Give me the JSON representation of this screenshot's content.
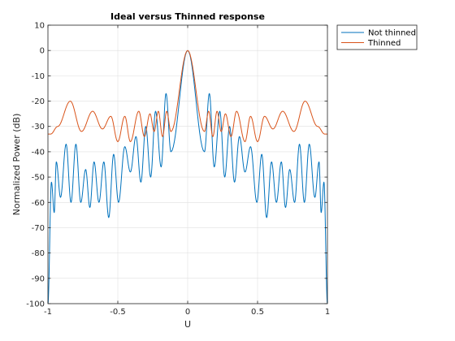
{
  "chart_data": {
    "type": "line",
    "title": "Ideal versus Thinned response",
    "xlabel": "U",
    "ylabel": "Normalized Power (dB)",
    "xlim": [
      -1,
      1
    ],
    "ylim": [
      -100,
      10
    ],
    "xticks": [
      -1,
      -0.5,
      0,
      0.5,
      1
    ],
    "xtick_labels": [
      "-1",
      "-0.5",
      "0",
      "0.5",
      "1"
    ],
    "yticks": [
      10,
      0,
      -10,
      -20,
      -30,
      -40,
      -50,
      -60,
      -70,
      -80,
      -90,
      -100
    ],
    "ytick_labels": [
      "10",
      "0",
      "-10",
      "-20",
      "-30",
      "-40",
      "-50",
      "-60",
      "-70",
      "-80",
      "-90",
      "-100"
    ],
    "grid": true,
    "legend_position": "outside-top-right",
    "series": [
      {
        "name": "Not thinned",
        "color": "#0072BD",
        "peaks": [
          {
            "u": -0.975,
            "y": -52
          },
          {
            "u": -0.94,
            "y": -44
          },
          {
            "u": -0.87,
            "y": -37
          },
          {
            "u": -0.8,
            "y": -37
          },
          {
            "u": -0.73,
            "y": -47
          },
          {
            "u": -0.67,
            "y": -44
          },
          {
            "u": -0.6,
            "y": -44
          },
          {
            "u": -0.53,
            "y": -41
          },
          {
            "u": -0.45,
            "y": -38
          },
          {
            "u": -0.37,
            "y": -34
          },
          {
            "u": -0.3,
            "y": -30
          },
          {
            "u": -0.23,
            "y": -24
          },
          {
            "u": -0.155,
            "y": -17
          },
          {
            "u": 0,
            "y": 0
          },
          {
            "u": 0.155,
            "y": -17
          },
          {
            "u": 0.23,
            "y": -24
          },
          {
            "u": 0.3,
            "y": -30
          },
          {
            "u": 0.37,
            "y": -34
          },
          {
            "u": 0.45,
            "y": -38
          },
          {
            "u": 0.53,
            "y": -41
          },
          {
            "u": 0.6,
            "y": -44
          },
          {
            "u": 0.67,
            "y": -44
          },
          {
            "u": 0.73,
            "y": -47
          },
          {
            "u": 0.8,
            "y": -37
          },
          {
            "u": 0.87,
            "y": -37
          },
          {
            "u": 0.94,
            "y": -44
          },
          {
            "u": 0.975,
            "y": -52
          }
        ],
        "nulls": [
          {
            "u": -1.0,
            "y": -100
          },
          {
            "u": -0.955,
            "y": -64
          },
          {
            "u": -0.91,
            "y": -58
          },
          {
            "u": -0.835,
            "y": -60
          },
          {
            "u": -0.765,
            "y": -60
          },
          {
            "u": -0.7,
            "y": -62
          },
          {
            "u": -0.635,
            "y": -60
          },
          {
            "u": -0.565,
            "y": -66
          },
          {
            "u": -0.495,
            "y": -60
          },
          {
            "u": -0.41,
            "y": -48
          },
          {
            "u": -0.335,
            "y": -52
          },
          {
            "u": -0.265,
            "y": -50
          },
          {
            "u": -0.19,
            "y": -46
          },
          {
            "u": -0.12,
            "y": -40
          },
          {
            "u": 0.12,
            "y": -40
          },
          {
            "u": 0.19,
            "y": -46
          },
          {
            "u": 0.265,
            "y": -50
          },
          {
            "u": 0.335,
            "y": -52
          },
          {
            "u": 0.41,
            "y": -48
          },
          {
            "u": 0.495,
            "y": -60
          },
          {
            "u": 0.565,
            "y": -66
          },
          {
            "u": 0.635,
            "y": -60
          },
          {
            "u": 0.7,
            "y": -62
          },
          {
            "u": 0.765,
            "y": -60
          },
          {
            "u": 0.835,
            "y": -60
          },
          {
            "u": 0.91,
            "y": -58
          },
          {
            "u": 0.955,
            "y": -64
          },
          {
            "u": 1.0,
            "y": -100
          }
        ]
      },
      {
        "name": "Thinned",
        "color": "#D95319",
        "peaks": [
          {
            "u": -0.98,
            "y": -33
          },
          {
            "u": -0.84,
            "y": -20
          },
          {
            "u": -0.68,
            "y": -24
          },
          {
            "u": -0.55,
            "y": -26
          },
          {
            "u": -0.45,
            "y": -26
          },
          {
            "u": -0.35,
            "y": -24
          },
          {
            "u": -0.27,
            "y": -25
          },
          {
            "u": -0.21,
            "y": -24
          },
          {
            "u": -0.15,
            "y": -24
          },
          {
            "u": 0,
            "y": 0
          },
          {
            "u": 0.15,
            "y": -24
          },
          {
            "u": 0.21,
            "y": -24
          },
          {
            "u": 0.27,
            "y": -25
          },
          {
            "u": 0.35,
            "y": -24
          },
          {
            "u": 0.45,
            "y": -26
          },
          {
            "u": 0.55,
            "y": -26
          },
          {
            "u": 0.68,
            "y": -24
          },
          {
            "u": 0.84,
            "y": -20
          },
          {
            "u": 0.98,
            "y": -33
          }
        ],
        "nulls": [
          {
            "u": -1.0,
            "y": -33
          },
          {
            "u": -0.93,
            "y": -30
          },
          {
            "u": -0.76,
            "y": -32
          },
          {
            "u": -0.61,
            "y": -31
          },
          {
            "u": -0.5,
            "y": -36
          },
          {
            "u": -0.41,
            "y": -36
          },
          {
            "u": -0.31,
            "y": -34
          },
          {
            "u": -0.24,
            "y": -32
          },
          {
            "u": -0.18,
            "y": -34
          },
          {
            "u": -0.12,
            "y": -32
          },
          {
            "u": 0.12,
            "y": -32
          },
          {
            "u": 0.18,
            "y": -34
          },
          {
            "u": 0.24,
            "y": -32
          },
          {
            "u": 0.31,
            "y": -34
          },
          {
            "u": 0.41,
            "y": -36
          },
          {
            "u": 0.5,
            "y": -36
          },
          {
            "u": 0.61,
            "y": -31
          },
          {
            "u": 0.76,
            "y": -32
          },
          {
            "u": 0.93,
            "y": -30
          },
          {
            "u": 1.0,
            "y": -33
          }
        ]
      }
    ]
  }
}
